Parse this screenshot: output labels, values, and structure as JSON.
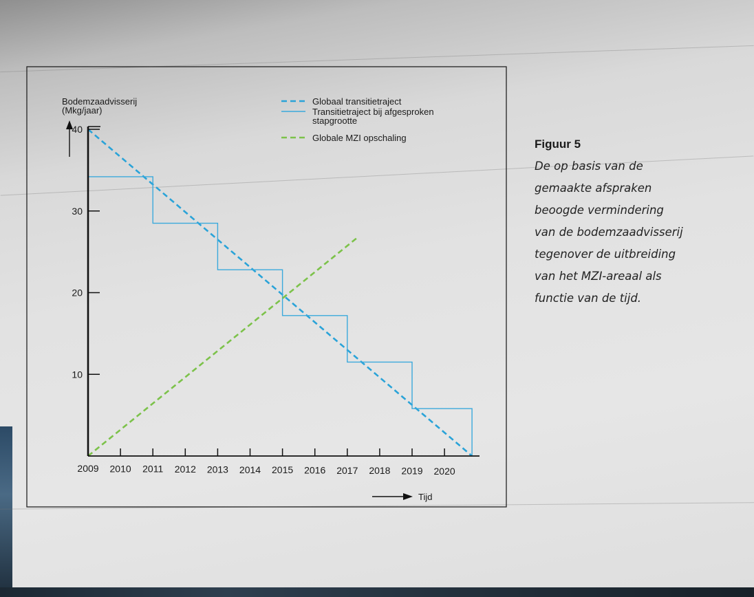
{
  "caption": {
    "title": "Figuur 5",
    "lines": [
      "De op basis van de",
      "gemaakte afspraken",
      "beoogde vermindering",
      "van de bodemzaadvisserij",
      "tegenover de uitbreiding",
      "van het MZI-areaal als",
      "functie van de tijd."
    ]
  },
  "colors": {
    "global_trajectory": "#2aa3d8",
    "stepped_trajectory": "#3aa9dc",
    "mzi_scaling": "#7cc24a",
    "axis": "#111111"
  },
  "chart_data": {
    "type": "line",
    "ylabel": [
      "Bodemzaadvisserij",
      "(Mkg/jaar)"
    ],
    "xlabel": "Tijd",
    "ylim": [
      0,
      40
    ],
    "xlim": [
      2009,
      2020.85
    ],
    "yticks": [
      10,
      20,
      30,
      40
    ],
    "xticks": [
      2009,
      2010,
      2011,
      2012,
      2013,
      2014,
      2015,
      2016,
      2017,
      2018,
      2019,
      2020
    ],
    "legend_position": "top-right",
    "legend": [
      {
        "label": "Globaal transitietraject",
        "style": "dashed",
        "color": "#2aa3d8"
      },
      {
        "label": [
          "Transitietraject bij afgesproken",
          "stapgrootte"
        ],
        "style": "solid",
        "color": "#3aa9dc"
      },
      {
        "label": "Globale MZI opschaling",
        "style": "dashed",
        "color": "#7cc24a"
      }
    ],
    "series": [
      {
        "name": "Globaal transitietraject",
        "style": "dashed",
        "points": [
          [
            2009,
            40
          ],
          [
            2020.85,
            0
          ]
        ]
      },
      {
        "name": "Transitietraject bij afgesproken stapgrootte",
        "style": "solid",
        "points": [
          [
            2009,
            34.2
          ],
          [
            2011.0,
            34.2
          ],
          [
            2011.0,
            28.5
          ],
          [
            2013.0,
            28.5
          ],
          [
            2013.0,
            22.8
          ],
          [
            2015.0,
            22.8
          ],
          [
            2015.0,
            17.2
          ],
          [
            2017.0,
            17.2
          ],
          [
            2017.0,
            11.5
          ],
          [
            2019.0,
            11.5
          ],
          [
            2019.0,
            5.8
          ],
          [
            2020.85,
            5.8
          ],
          [
            2020.85,
            0
          ]
        ]
      },
      {
        "name": "Globale MZI opschaling",
        "style": "dashed",
        "points": [
          [
            2009,
            0
          ],
          [
            2017.3,
            26.7
          ]
        ]
      }
    ]
  }
}
